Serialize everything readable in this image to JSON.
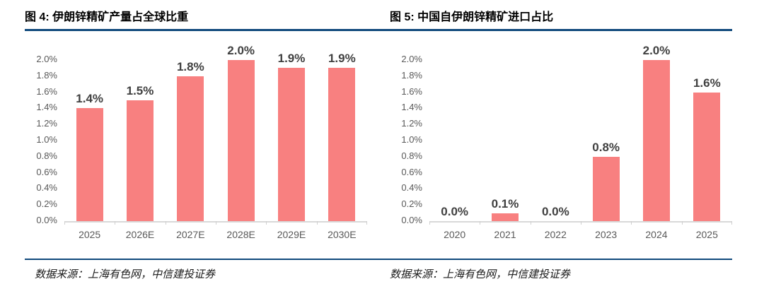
{
  "colors": {
    "rule": "#10497c",
    "bar": "#f88080",
    "axis_line": "#d9d9d9",
    "axis_label": "#595959",
    "data_label": "#404040",
    "title": "#000000",
    "background": "#ffffff"
  },
  "chart_data": [
    {
      "type": "bar",
      "title": "图 4: 伊朗锌精矿产量占全球比重",
      "source": "数据来源：上海有色网，中信建投证券",
      "categories": [
        "2025",
        "2026E",
        "2027E",
        "2028E",
        "2029E",
        "2030E"
      ],
      "values": [
        1.4,
        1.5,
        1.8,
        2.0,
        1.9,
        1.9
      ],
      "value_labels": [
        "1.4%",
        "1.5%",
        "1.8%",
        "2.0%",
        "1.9%",
        "1.9%"
      ],
      "yticks": [
        "0.0%",
        "0.2%",
        "0.4%",
        "0.6%",
        "0.8%",
        "1.0%",
        "1.2%",
        "1.4%",
        "1.6%",
        "1.8%",
        "2.0%"
      ],
      "ylim": [
        0,
        2.0
      ],
      "xlabel": "",
      "ylabel": "",
      "grid": false,
      "legend": "none",
      "bar_color": "#f88080"
    },
    {
      "type": "bar",
      "title": "图 5: 中国自伊朗锌精矿进口占比",
      "source": "数据来源：上海有色网，中信建投证券",
      "categories": [
        "2020",
        "2021",
        "2022",
        "2023",
        "2024",
        "2025"
      ],
      "values": [
        0.0,
        0.1,
        0.0,
        0.8,
        2.0,
        1.6
      ],
      "value_labels": [
        "0.0%",
        "0.1%",
        "0.0%",
        "0.8%",
        "2.0%",
        "1.6%"
      ],
      "yticks": [
        "0.0%",
        "0.2%",
        "0.4%",
        "0.6%",
        "0.8%",
        "1.0%",
        "1.2%",
        "1.4%",
        "1.6%",
        "1.8%",
        "2.0%"
      ],
      "ylim": [
        0,
        2.0
      ],
      "xlabel": "",
      "ylabel": "",
      "grid": false,
      "legend": "none",
      "bar_color": "#f88080"
    }
  ]
}
